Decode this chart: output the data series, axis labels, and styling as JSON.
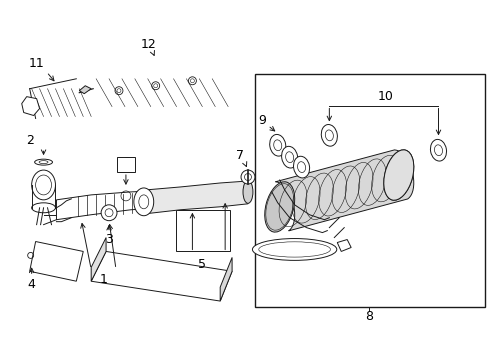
{
  "bg_color": "#ffffff",
  "line_color": "#1a1a1a",
  "fig_width": 4.89,
  "fig_height": 3.6,
  "dpi": 100,
  "label_fs": 9,
  "lw": 0.7
}
